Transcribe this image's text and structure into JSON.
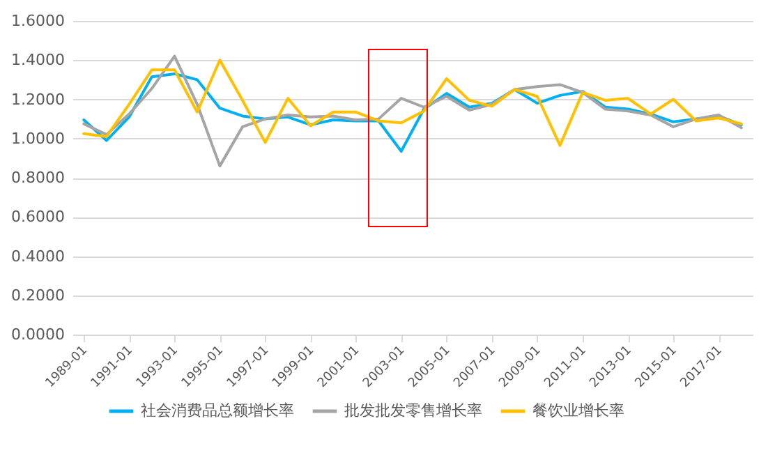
{
  "chart_data": {
    "type": "line",
    "categories": [
      "1989-01",
      null,
      "1991-01",
      null,
      "1993-01",
      null,
      "1995-01",
      null,
      "1997-01",
      null,
      "1999-01",
      null,
      "2001-01",
      null,
      "2003-01",
      null,
      "2005-01",
      null,
      "2007-01",
      null,
      "2009-01",
      null,
      "2011-01",
      null,
      "2013-01",
      null,
      "2015-01",
      null,
      "2017-01",
      null
    ],
    "series": [
      {
        "name": "社会消费品总额增长率",
        "color": "#00b0f0",
        "values": [
          1.095,
          0.99,
          1.11,
          1.315,
          1.33,
          1.3,
          1.155,
          1.115,
          1.1,
          1.11,
          1.07,
          1.095,
          1.09,
          1.09,
          0.935,
          1.15,
          1.23,
          1.16,
          1.18,
          1.25,
          1.18,
          1.22,
          1.24,
          1.16,
          1.15,
          1.125,
          1.085,
          1.1,
          1.115,
          1.07
        ]
      },
      {
        "name": "批发批发零售增长率",
        "color": "#a5a5a5",
        "values": [
          1.075,
          1.02,
          1.125,
          1.255,
          1.42,
          1.175,
          0.86,
          1.06,
          1.1,
          1.12,
          1.11,
          1.115,
          1.095,
          1.1,
          1.205,
          1.16,
          1.215,
          1.145,
          1.175,
          1.25,
          1.265,
          1.275,
          1.235,
          1.15,
          1.14,
          1.12,
          1.06,
          1.1,
          1.12,
          1.055
        ]
      },
      {
        "name": "餐饮业增长率",
        "color": "#ffc000",
        "values": [
          1.025,
          1.01,
          1.175,
          1.35,
          1.35,
          1.135,
          1.4,
          1.195,
          0.98,
          1.205,
          1.065,
          1.135,
          1.135,
          1.09,
          1.08,
          1.14,
          1.305,
          1.195,
          1.165,
          1.25,
          1.215,
          0.965,
          1.235,
          1.195,
          1.205,
          1.125,
          1.2,
          1.09,
          1.105,
          1.075
        ]
      }
    ],
    "ylim": [
      0,
      1.6
    ],
    "yticks": [
      {
        "value": 0,
        "label": "0.0000"
      },
      {
        "value": 0.2,
        "label": "0.2000"
      },
      {
        "value": 0.4,
        "label": "0.4000"
      },
      {
        "value": 0.6,
        "label": "0.6000"
      },
      {
        "value": 0.8,
        "label": "0.8000"
      },
      {
        "value": 1,
        "label": "1.0000"
      },
      {
        "value": 1.2,
        "label": "1.2000"
      },
      {
        "value": 1.4,
        "label": "1.4000"
      },
      {
        "value": 1.6,
        "label": "1.6000"
      }
    ],
    "grid": "y",
    "legend": "bottom",
    "marker": "none",
    "line_style": "solid"
  }
}
